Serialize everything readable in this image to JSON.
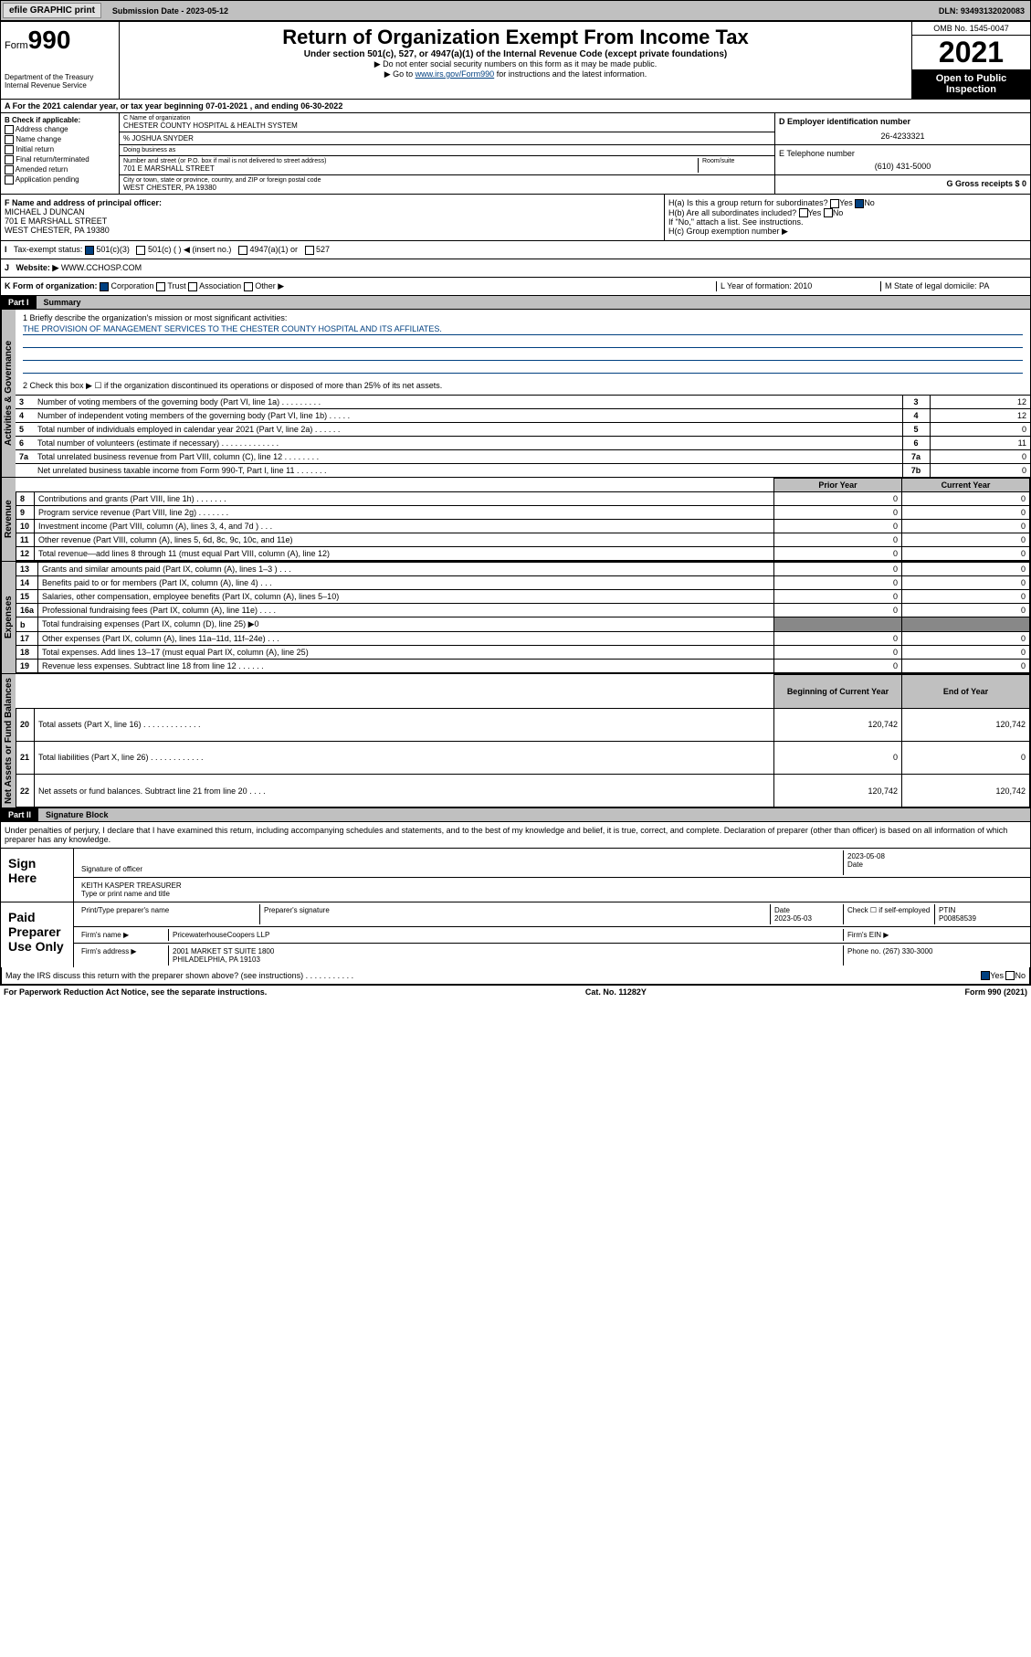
{
  "topbar": {
    "efile": "efile GRAPHIC print",
    "sub_label": "Submission Date - 2023-05-12",
    "dln": "DLN: 93493132020083"
  },
  "header": {
    "form": "Form",
    "form_num": "990",
    "dept": "Department of the Treasury Internal Revenue Service",
    "title": "Return of Organization Exempt From Income Tax",
    "sub1": "Under section 501(c), 527, or 4947(a)(1) of the Internal Revenue Code (except private foundations)",
    "sub2": "▶ Do not enter social security numbers on this form as it may be made public.",
    "sub3_pre": "▶ Go to ",
    "sub3_link": "www.irs.gov/Form990",
    "sub3_post": " for instructions and the latest information.",
    "omb": "OMB No. 1545-0047",
    "year": "2021",
    "open": "Open to Public Inspection"
  },
  "line_a": "A For the 2021 calendar year, or tax year beginning 07-01-2021   , and ending 06-30-2022",
  "col_b": {
    "hdr": "B Check if applicable:",
    "items": [
      "Address change",
      "Name change",
      "Initial return",
      "Final return/terminated",
      "Amended return",
      "Application pending"
    ]
  },
  "col_c": {
    "name_lbl": "C Name of organization",
    "name": "CHESTER COUNTY HOSPITAL & HEALTH SYSTEM",
    "care": "% JOSHUA SNYDER",
    "dba_lbl": "Doing business as",
    "addr_lbl": "Number and street (or P.O. box if mail is not delivered to street address)",
    "room_lbl": "Room/suite",
    "addr": "701 E MARSHALL STREET",
    "city_lbl": "City or town, state or province, country, and ZIP or foreign postal code",
    "city": "WEST CHESTER, PA  19380"
  },
  "col_d": {
    "ein_lbl": "D Employer identification number",
    "ein": "26-4233321",
    "tel_lbl": "E Telephone number",
    "tel": "(610) 431-5000",
    "gross_lbl": "G Gross receipts $ 0"
  },
  "row_f": {
    "f_lbl": "F Name and address of principal officer:",
    "f_name": "MICHAEL J DUNCAN",
    "f_addr1": "701 E MARSHALL STREET",
    "f_addr2": "WEST CHESTER, PA  19380",
    "ha": "H(a)  Is this a group return for subordinates?",
    "hb": "H(b)  Are all subordinates included?",
    "hb_note": "If \"No,\" attach a list. See instructions.",
    "hc": "H(c)  Group exemption number ▶",
    "yes": "Yes",
    "no": "No"
  },
  "row_i": {
    "lbl": "Tax-exempt status:",
    "opt1": "501(c)(3)",
    "opt2": "501(c) (  ) ◀ (insert no.)",
    "opt3": "4947(a)(1) or",
    "opt4": "527"
  },
  "row_j": {
    "lbl": "Website: ▶",
    "val": "WWW.CCHOSP.COM"
  },
  "row_k": {
    "lbl": "K Form of organization:",
    "opts": [
      "Corporation",
      "Trust",
      "Association",
      "Other ▶"
    ],
    "l_lbl": "L Year of formation: 2010",
    "m_lbl": "M State of legal domicile: PA"
  },
  "part1": {
    "hdr": "Part I",
    "title": "Summary"
  },
  "mission": {
    "q1_lbl": "1  Briefly describe the organization's mission or most significant activities:",
    "q1_val": "THE PROVISION OF MANAGEMENT SERVICES TO THE CHESTER COUNTY HOSPITAL AND ITS AFFILIATES.",
    "q2": "2   Check this box ▶ ☐  if the organization discontinued its operations or disposed of more than 25% of its net assets."
  },
  "gov_rows": [
    {
      "n": "3",
      "t": "Number of voting members of the governing body (Part VI, line 1a)  .   .   .   .   .   .   .   .   .",
      "k": "3",
      "v": "12"
    },
    {
      "n": "4",
      "t": "Number of independent voting members of the governing body (Part VI, line 1b)   .   .   .   .   .",
      "k": "4",
      "v": "12"
    },
    {
      "n": "5",
      "t": "Total number of individuals employed in calendar year 2021 (Part V, line 2a)   .   .   .   .   .   .",
      "k": "5",
      "v": "0"
    },
    {
      "n": "6",
      "t": "Total number of volunteers (estimate if necessary)   .   .   .   .   .   .   .   .   .   .   .   .   .",
      "k": "6",
      "v": "11"
    },
    {
      "n": "7a",
      "t": "Total unrelated business revenue from Part VIII, column (C), line 12  .   .   .   .   .   .   .   .",
      "k": "7a",
      "v": "0"
    },
    {
      "n": "",
      "t": "Net unrelated business taxable income from Form 990-T, Part I, line 11   .   .   .   .   .   .   .",
      "k": "7b",
      "v": "0"
    }
  ],
  "fin_hdr": {
    "prior": "Prior Year",
    "current": "Current Year",
    "begin": "Beginning of Current Year",
    "end": "End of Year"
  },
  "rev_rows": [
    {
      "n": "8",
      "t": "Contributions and grants (Part VIII, line 1h)   .   .   .   .   .   .   .",
      "p": "0",
      "c": "0"
    },
    {
      "n": "9",
      "t": "Program service revenue (Part VIII, line 2g)  .   .   .   .   .   .   .",
      "p": "0",
      "c": "0"
    },
    {
      "n": "10",
      "t": "Investment income (Part VIII, column (A), lines 3, 4, and 7d )   .   .   .",
      "p": "0",
      "c": "0"
    },
    {
      "n": "11",
      "t": "Other revenue (Part VIII, column (A), lines 5, 6d, 8c, 9c, 10c, and 11e)",
      "p": "0",
      "c": "0"
    },
    {
      "n": "12",
      "t": "Total revenue—add lines 8 through 11 (must equal Part VIII, column (A), line 12)",
      "p": "0",
      "c": "0"
    }
  ],
  "exp_rows": [
    {
      "n": "13",
      "t": "Grants and similar amounts paid (Part IX, column (A), lines 1–3 )  .   .   .",
      "p": "0",
      "c": "0"
    },
    {
      "n": "14",
      "t": "Benefits paid to or for members (Part IX, column (A), line 4)  .   .   .",
      "p": "0",
      "c": "0"
    },
    {
      "n": "15",
      "t": "Salaries, other compensation, employee benefits (Part IX, column (A), lines 5–10)",
      "p": "0",
      "c": "0"
    },
    {
      "n": "16a",
      "t": "Professional fundraising fees (Part IX, column (A), line 11e)  .   .   .   .",
      "p": "0",
      "c": "0"
    },
    {
      "n": "b",
      "t": "Total fundraising expenses (Part IX, column (D), line 25) ▶0",
      "p": "grey",
      "c": "grey"
    },
    {
      "n": "17",
      "t": "Other expenses (Part IX, column (A), lines 11a–11d, 11f–24e)  .   .   .",
      "p": "0",
      "c": "0"
    },
    {
      "n": "18",
      "t": "Total expenses. Add lines 13–17 (must equal Part IX, column (A), line 25)",
      "p": "0",
      "c": "0"
    },
    {
      "n": "19",
      "t": "Revenue less expenses. Subtract line 18 from line 12  .   .   .   .   .   .",
      "p": "0",
      "c": "0"
    }
  ],
  "net_rows": [
    {
      "n": "20",
      "t": "Total assets (Part X, line 16)  .   .   .   .   .   .   .   .   .   .   .   .   .",
      "p": "120,742",
      "c": "120,742"
    },
    {
      "n": "21",
      "t": "Total liabilities (Part X, line 26)   .   .   .   .   .   .   .   .   .   .   .   .",
      "p": "0",
      "c": "0"
    },
    {
      "n": "22",
      "t": "Net assets or fund balances. Subtract line 21 from line 20  .   .   .   .",
      "p": "120,742",
      "c": "120,742"
    }
  ],
  "vtabs": {
    "gov": "Activities & Governance",
    "rev": "Revenue",
    "exp": "Expenses",
    "net": "Net Assets or Fund Balances"
  },
  "part2": {
    "hdr": "Part II",
    "title": "Signature Block"
  },
  "sig": {
    "decl": "Under penalties of perjury, I declare that I have examined this return, including accompanying schedules and statements, and to the best of my knowledge and belief, it is true, correct, and complete. Declaration of preparer (other than officer) is based on all information of which preparer has any knowledge.",
    "sign_here": "Sign Here",
    "sig_officer": "Signature of officer",
    "date_lbl": "Date",
    "date_val": "2023-05-08",
    "name_title": "KEITH KASPER  TREASURER",
    "name_lbl": "Type or print name and title",
    "paid": "Paid Preparer Use Only",
    "prep_name_lbl": "Print/Type preparer's name",
    "prep_sig_lbl": "Preparer's signature",
    "prep_date_lbl": "Date",
    "prep_date": "2023-05-03",
    "check_lbl": "Check ☐ if self-employed",
    "ptin_lbl": "PTIN",
    "ptin": "P00858539",
    "firm_name_lbl": "Firm's name   ▶",
    "firm_name": "PricewaterhouseCoopers LLP",
    "firm_ein_lbl": "Firm's EIN ▶",
    "firm_addr_lbl": "Firm's address ▶",
    "firm_addr1": "2001 MARKET ST SUITE 1800",
    "firm_addr2": "PHILADELPHIA, PA  19103",
    "phone_lbl": "Phone no.",
    "phone": "(267) 330-3000",
    "discuss": "May the IRS discuss this return with the preparer shown above? (see instructions)   .   .   .   .   .   .   .   .   .   .   .",
    "yes": "Yes",
    "no": "No"
  },
  "footer": {
    "left": "For Paperwork Reduction Act Notice, see the separate instructions.",
    "mid": "Cat. No. 11282Y",
    "right": "Form 990 (2021)"
  }
}
